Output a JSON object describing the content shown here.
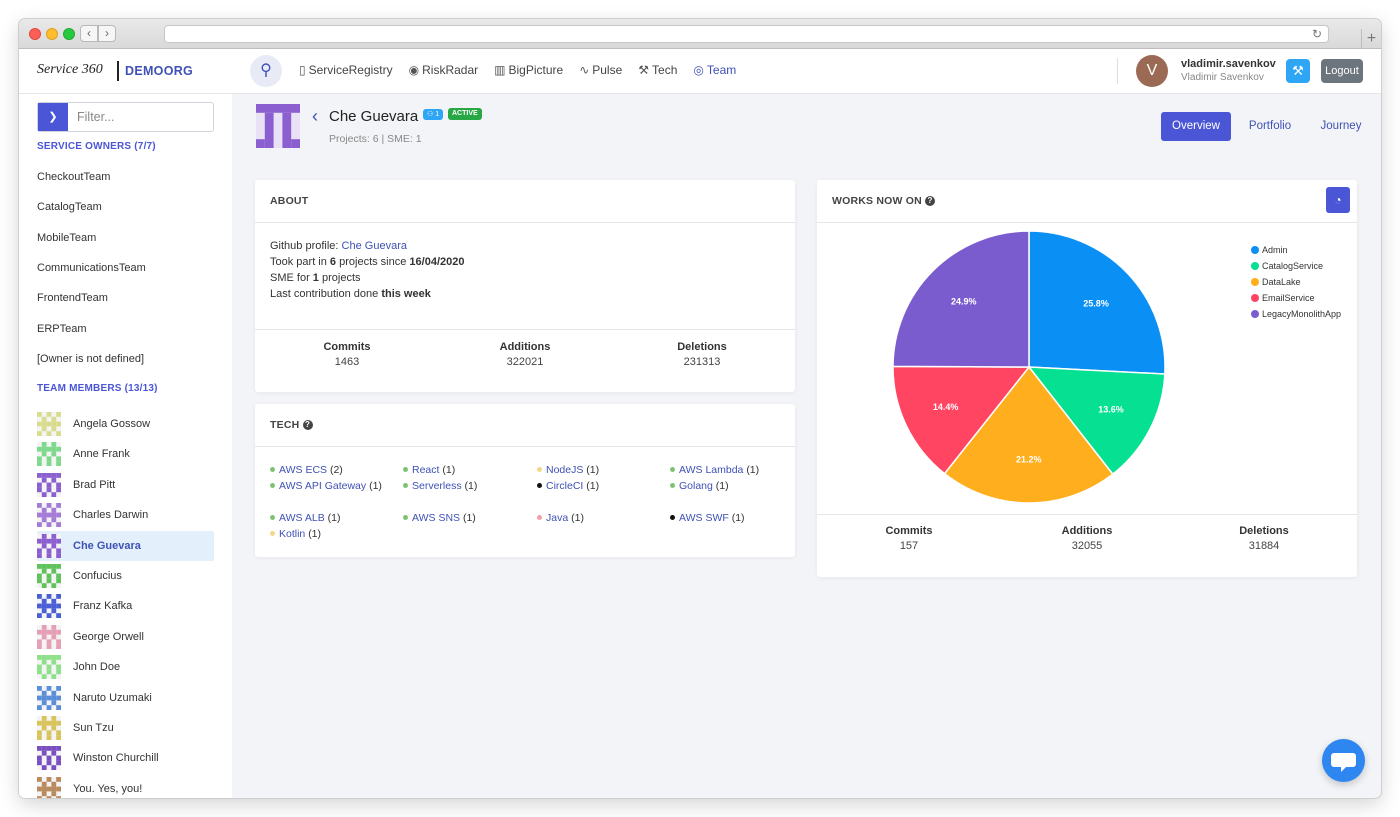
{
  "header": {
    "logo_text": "Service 360",
    "org": "DEMOORG",
    "nav": [
      {
        "label": "ServiceRegistry",
        "icon": "clipboard-icon"
      },
      {
        "label": "RiskRadar",
        "icon": "eye-icon"
      },
      {
        "label": "BigPicture",
        "icon": "map-icon"
      },
      {
        "label": "Pulse",
        "icon": "pulse-icon"
      },
      {
        "label": "Tech",
        "icon": "tools-icon"
      },
      {
        "label": "Team",
        "icon": "team-icon",
        "active": true
      }
    ],
    "user": {
      "initial": "V",
      "username": "vladimir.savenkov",
      "full_name": "Vladimir Savenkov"
    },
    "logout_label": "Logout"
  },
  "sidebar": {
    "filter_placeholder": "Filter...",
    "owners_title": "SERVICE OWNERS (7/7)",
    "owners": [
      "CheckoutTeam",
      "CatalogTeam",
      "MobileTeam",
      "CommunicationsTeam",
      "FrontendTeam",
      "ERPTeam",
      "[Owner is not defined]"
    ],
    "members_title": "TEAM MEMBERS (13/13)",
    "members": [
      {
        "name": "Angela Gossow",
        "color": "#d9dc8c"
      },
      {
        "name": "Anne Frank",
        "color": "#7fd98c"
      },
      {
        "name": "Brad Pitt",
        "color": "#8b5fcf"
      },
      {
        "name": "Charles Darwin",
        "color": "#a57bd8"
      },
      {
        "name": "Che Guevara",
        "color": "#8b5fcf",
        "active": true
      },
      {
        "name": "Confucius",
        "color": "#5fc25a"
      },
      {
        "name": "Franz Kafka",
        "color": "#4a5fd6"
      },
      {
        "name": "George Orwell",
        "color": "#e59fb5"
      },
      {
        "name": "John Doe",
        "color": "#8fe08b"
      },
      {
        "name": "Naruto Uzumaki",
        "color": "#5a8fd8"
      },
      {
        "name": "Sun Tzu",
        "color": "#d8c45a"
      },
      {
        "name": "Winston Churchill",
        "color": "#7a4fc2"
      },
      {
        "name": "You. Yes, you!",
        "color": "#b88a5c"
      }
    ]
  },
  "profile": {
    "name": "Che Guevara",
    "badge_count": "1",
    "status": "ACTIVE",
    "subtitle": "Projects: 6 | SME: 1",
    "tabs": [
      "Overview",
      "Portfolio",
      "Journey"
    ]
  },
  "about": {
    "title": "ABOUT",
    "github_prefix": "Github profile: ",
    "github_link": "Che Guevara",
    "took_part_1": "Took part in ",
    "took_part_count": "6",
    "took_part_2": " projects since ",
    "since_date": "16/04/2020",
    "sme_1": "SME for ",
    "sme_count": "1",
    "sme_2": " projects",
    "last_1": "Last contribution done ",
    "last_when": "this week",
    "stats": [
      {
        "label": "Commits",
        "value": "1463"
      },
      {
        "label": "Additions",
        "value": "322021"
      },
      {
        "label": "Deletions",
        "value": "231313"
      }
    ]
  },
  "tech": {
    "title": "TECH",
    "items": [
      {
        "name": "AWS ECS",
        "count": "(2)",
        "color": "#7cc474"
      },
      {
        "name": "React",
        "count": "(1)",
        "color": "#7cc474"
      },
      {
        "name": "NodeJS",
        "count": "(1)",
        "color": "#f5d78a"
      },
      {
        "name": "AWS Lambda",
        "count": "(1)",
        "color": "#7cc474"
      },
      {
        "name": "AWS API Gateway",
        "count": "(1)",
        "color": "#7cc474"
      },
      {
        "name": "Serverless",
        "count": "(1)",
        "color": "#7cc474"
      },
      {
        "name": "CircleCI",
        "count": "(1)",
        "color": "#111111"
      },
      {
        "name": "Golang",
        "count": "(1)",
        "color": "#7cc474"
      },
      {
        "name": "AWS ALB",
        "count": "(1)",
        "color": "#7cc474"
      },
      {
        "name": "AWS SNS",
        "count": "(1)",
        "color": "#7cc474"
      },
      {
        "name": "Java",
        "count": "(1)",
        "color": "#f2a0a8"
      },
      {
        "name": "AWS SWF",
        "count": "(1)",
        "color": "#111111"
      },
      {
        "name": "Kotlin",
        "count": "(1)",
        "color": "#f5d78a"
      }
    ]
  },
  "works": {
    "title": "WORKS NOW ON",
    "stats": [
      {
        "label": "Commits",
        "value": "157"
      },
      {
        "label": "Additions",
        "value": "32055"
      },
      {
        "label": "Deletions",
        "value": "31884"
      }
    ]
  },
  "chart_data": {
    "type": "pie",
    "categories": [
      "Admin",
      "CatalogService",
      "DataLake",
      "EmailService",
      "LegacyMonolithApp"
    ],
    "values": [
      25.8,
      13.6,
      21.2,
      14.4,
      24.9
    ],
    "labels": [
      "25.8%",
      "13.6%",
      "21.2%",
      "14.4%",
      "24.9%"
    ],
    "colors": [
      "#0a8ff5",
      "#06e093",
      "#ffae1e",
      "#ff4561",
      "#7b5ccf"
    ],
    "legend_position": "right"
  }
}
